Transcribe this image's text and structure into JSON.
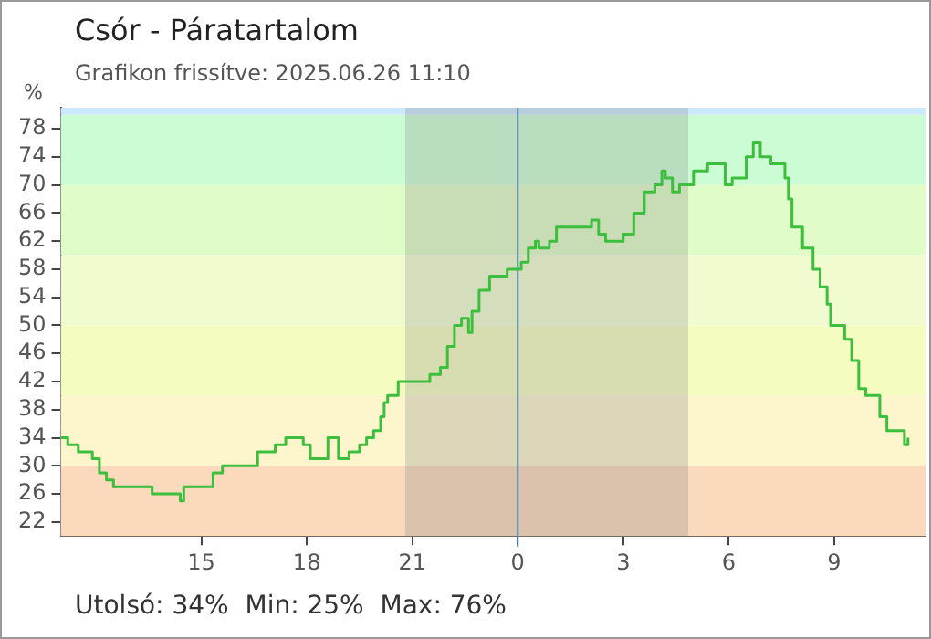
{
  "chart_data": {
    "type": "step",
    "title": "Csór - Páratartalom",
    "subtitle": "Grafikon frissítve: 2025.06.26 11:10",
    "ylabel": "%",
    "annotations": [
      "Utolsó: 34%  Min: 25%  Max: 76%"
    ],
    "xlim": [
      "2025-06-25T11:00",
      "2025-06-26T11:36"
    ],
    "xticks": [
      {
        "value": "2025-06-25T15:00",
        "label": "15"
      },
      {
        "value": "2025-06-25T18:00",
        "label": "18"
      },
      {
        "value": "2025-06-25T21:00",
        "label": "21"
      },
      {
        "value": "2025-06-26T00:00",
        "label": "0"
      },
      {
        "value": "2025-06-26T03:00",
        "label": "3"
      },
      {
        "value": "2025-06-26T06:00",
        "label": "6"
      },
      {
        "value": "2025-06-26T09:00",
        "label": "9"
      }
    ],
    "ylim": [
      20,
      81
    ],
    "yticks": [
      22,
      26,
      30,
      34,
      38,
      42,
      46,
      50,
      54,
      58,
      62,
      66,
      70,
      74,
      78
    ],
    "marker": "none",
    "legend": false,
    "bands": [
      {
        "axis": "y",
        "from": 20,
        "to": 30,
        "color": "#fad9bc"
      },
      {
        "axis": "y",
        "from": 30,
        "to": 40,
        "color": "#fdf5cc"
      },
      {
        "axis": "y",
        "from": 40,
        "to": 50,
        "color": "#f5fcc0"
      },
      {
        "axis": "y",
        "from": 50,
        "to": 60,
        "color": "#f0fcd0"
      },
      {
        "axis": "y",
        "from": 60,
        "to": 70,
        "color": "#e0fcc8"
      },
      {
        "axis": "y",
        "from": 70,
        "to": 80,
        "color": "#ccfcd4"
      },
      {
        "axis": "y",
        "from": 80,
        "to": 81,
        "color": "#cce8fc"
      },
      {
        "axis": "x",
        "from": "2025-06-25T20:48",
        "to": "2025-06-26T04:51",
        "color": "#7f7f7f"
      }
    ],
    "ref_lines": [
      {
        "axis": "x",
        "value": "2025-06-26T00:00",
        "color": "#4a86b8"
      }
    ],
    "series": [
      {
        "color": "#3cbf3c",
        "x": [
          "2025-06-25T11:00",
          "2025-06-25T11:12",
          "2025-06-25T11:30",
          "2025-06-25T11:42",
          "2025-06-25T11:54",
          "2025-06-25T12:06",
          "2025-06-25T12:18",
          "2025-06-25T12:30",
          "2025-06-25T13:30",
          "2025-06-25T13:36",
          "2025-06-25T14:18",
          "2025-06-25T14:24",
          "2025-06-25T14:30",
          "2025-06-25T15:18",
          "2025-06-25T15:20",
          "2025-06-25T15:36",
          "2025-06-25T16:30",
          "2025-06-25T16:36",
          "2025-06-25T17:06",
          "2025-06-25T17:24",
          "2025-06-25T17:48",
          "2025-06-25T17:54",
          "2025-06-25T18:06",
          "2025-06-25T18:18",
          "2025-06-25T18:36",
          "2025-06-25T18:54",
          "2025-06-25T19:12",
          "2025-06-25T19:30",
          "2025-06-25T19:42",
          "2025-06-25T19:54",
          "2025-06-25T20:06",
          "2025-06-25T20:12",
          "2025-06-25T20:18",
          "2025-06-25T20:36",
          "2025-06-25T21:24",
          "2025-06-25T21:30",
          "2025-06-25T21:42",
          "2025-06-25T21:48",
          "2025-06-25T22:00",
          "2025-06-25T22:12",
          "2025-06-25T22:24",
          "2025-06-25T22:36",
          "2025-06-25T22:42",
          "2025-06-25T22:54",
          "2025-06-25T23:12",
          "2025-06-25T23:42",
          "2025-06-26T00:06",
          "2025-06-26T00:18",
          "2025-06-26T00:30",
          "2025-06-26T00:36",
          "2025-06-26T00:54",
          "2025-06-26T01:06",
          "2025-06-26T02:00",
          "2025-06-26T02:06",
          "2025-06-26T02:18",
          "2025-06-26T02:30",
          "2025-06-26T02:54",
          "2025-06-26T03:00",
          "2025-06-26T03:18",
          "2025-06-26T03:36",
          "2025-06-26T03:54",
          "2025-06-26T04:06",
          "2025-06-26T04:12",
          "2025-06-26T04:24",
          "2025-06-26T04:36",
          "2025-06-26T04:42",
          "2025-06-26T05:00",
          "2025-06-26T05:24",
          "2025-06-26T05:42",
          "2025-06-26T05:54",
          "2025-06-26T06:06",
          "2025-06-26T06:18",
          "2025-06-26T06:30",
          "2025-06-26T06:42",
          "2025-06-26T06:54",
          "2025-06-26T07:12",
          "2025-06-26T07:36",
          "2025-06-26T07:42",
          "2025-06-26T07:48",
          "2025-06-26T08:06",
          "2025-06-26T08:24",
          "2025-06-26T08:36",
          "2025-06-26T08:48",
          "2025-06-26T08:54",
          "2025-06-26T09:18",
          "2025-06-26T09:30",
          "2025-06-26T09:42",
          "2025-06-26T09:54",
          "2025-06-26T10:06",
          "2025-06-26T10:18",
          "2025-06-26T10:30",
          "2025-06-26T10:42",
          "2025-06-26T11:00",
          "2025-06-26T11:06"
        ],
        "values": [
          34,
          33,
          32,
          32,
          31,
          29,
          28,
          27,
          27,
          26,
          26,
          25,
          27,
          27,
          29,
          30,
          30,
          32,
          33,
          34,
          34,
          33,
          31,
          31,
          34,
          31,
          32,
          33,
          34,
          35,
          37,
          39,
          40,
          42,
          42,
          43,
          43,
          44,
          47,
          50,
          51,
          49,
          52,
          55,
          57,
          58,
          59,
          61,
          62,
          61,
          62,
          64,
          64,
          65,
          63,
          62,
          62,
          63,
          66,
          69,
          70,
          72,
          71,
          69,
          70,
          70,
          72,
          73,
          73,
          70,
          71,
          71,
          74,
          76,
          74,
          73,
          71,
          68,
          64,
          61,
          58,
          55.5,
          53,
          50,
          48,
          45,
          41,
          40,
          40,
          37,
          35,
          35,
          33,
          34
        ]
      }
    ]
  }
}
